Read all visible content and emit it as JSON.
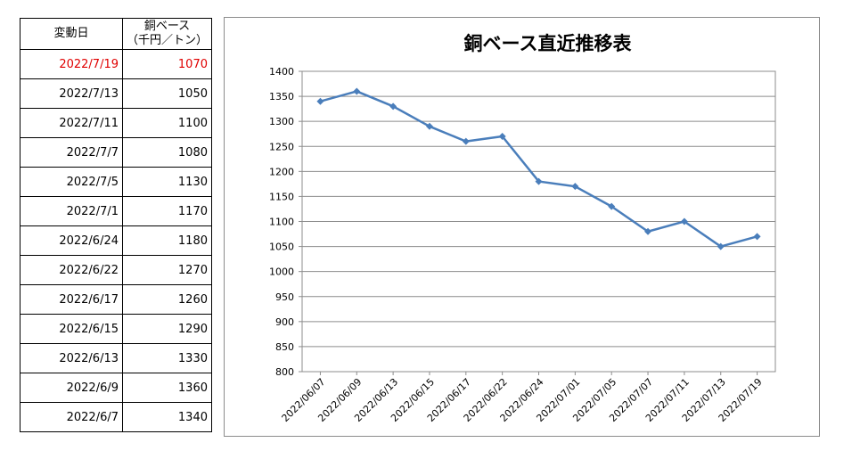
{
  "table": {
    "header": {
      "date": "変動日",
      "value_line1": "銅ベース",
      "value_line2": "（千円／トン）"
    },
    "rows": [
      {
        "date": "2022/7/19",
        "value": "1070",
        "highlight": true
      },
      {
        "date": "2022/7/13",
        "value": "1050"
      },
      {
        "date": "2022/7/11",
        "value": "1100"
      },
      {
        "date": "2022/7/7",
        "value": "1080"
      },
      {
        "date": "2022/7/5",
        "value": "1130"
      },
      {
        "date": "2022/7/1",
        "value": "1170"
      },
      {
        "date": "2022/6/24",
        "value": "1180"
      },
      {
        "date": "2022/6/22",
        "value": "1270"
      },
      {
        "date": "2022/6/17",
        "value": "1260"
      },
      {
        "date": "2022/6/15",
        "value": "1290"
      },
      {
        "date": "2022/6/13",
        "value": "1330"
      },
      {
        "date": "2022/6/9",
        "value": "1360"
      },
      {
        "date": "2022/6/7",
        "value": "1340"
      }
    ],
    "highlight_color": "#e00000"
  },
  "chart_data": {
    "type": "line",
    "title": "銅ベース直近推移表",
    "categories": [
      "2022/06/07",
      "2022/06/09",
      "2022/06/13",
      "2022/06/15",
      "2022/06/17",
      "2022/06/22",
      "2022/06/24",
      "2022/07/01",
      "2022/07/05",
      "2022/07/07",
      "2022/07/11",
      "2022/07/13",
      "2022/07/19"
    ],
    "values": [
      1340,
      1360,
      1330,
      1290,
      1260,
      1270,
      1180,
      1170,
      1130,
      1080,
      1100,
      1050,
      1070
    ],
    "ylim": [
      800,
      1400
    ],
    "ystep": 50,
    "grid": true,
    "line_color": "#4a7ebb",
    "xlabel": "",
    "ylabel": ""
  }
}
